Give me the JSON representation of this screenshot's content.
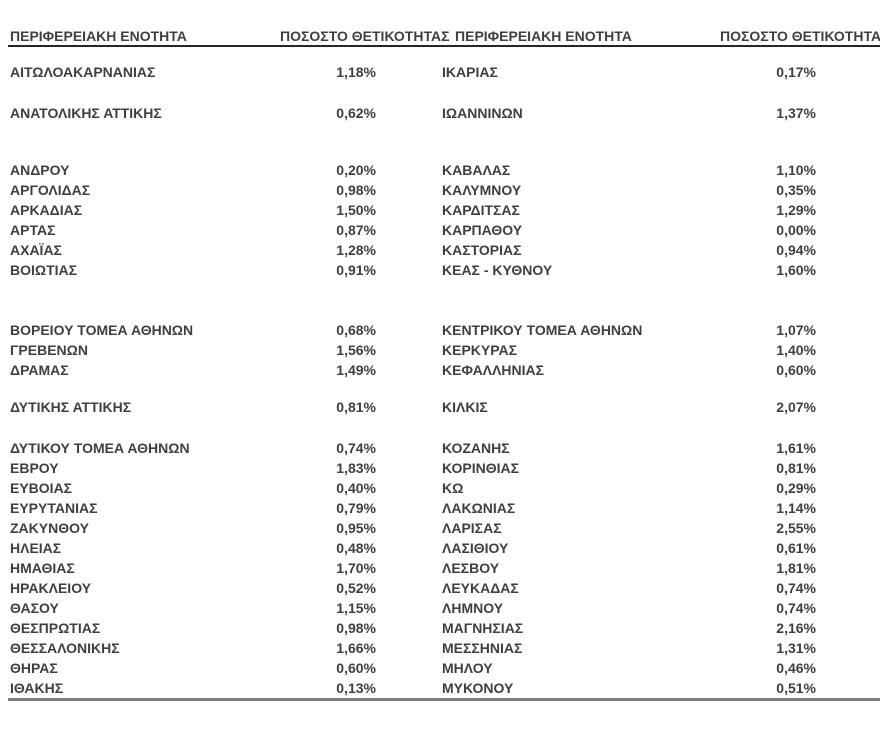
{
  "table": {
    "headers": {
      "region": "ΠΕΡΙΦΕΡΕΙΑΚΗ ΕΝΟΤΗΤΑ",
      "positivity": "ΠΟΣΟΣΤΟ ΘΕΤΙΚΟΤΗΤΑΣ"
    },
    "rows": [
      {
        "left": {
          "name": "ΑΙΤΩΛΟΑΚΑΡΝΑΝΙΑΣ",
          "positivity": "1,18%"
        },
        "right": {
          "name": "ΙΚΑΡΙΑΣ",
          "positivity": "0,17%"
        }
      },
      {
        "gap_before": "sm",
        "left": {
          "name": "ΑΝΑΤΟΛΙΚΗΣ ΑΤΤΙΚΗΣ",
          "positivity": "0,62%"
        },
        "right": {
          "name": "ΙΩΑΝΝΙΝΩΝ",
          "positivity": "1,37%"
        }
      },
      {
        "gap_before": "md",
        "left": {
          "name": "ΑΝΔΡΟΥ",
          "positivity": "0,20%"
        },
        "right": {
          "name": "ΚΑΒΑΛΑΣ",
          "positivity": "1,10%"
        }
      },
      {
        "left": {
          "name": "ΑΡΓΟΛΙΔΑΣ",
          "positivity": "0,98%"
        },
        "right": {
          "name": "ΚΑΛΥΜΝΟΥ",
          "positivity": "0,35%"
        }
      },
      {
        "left": {
          "name": "ΑΡΚΑΔΙΑΣ",
          "positivity": "1,50%"
        },
        "right": {
          "name": "ΚΑΡΔΙΤΣΑΣ",
          "positivity": "1,29%"
        }
      },
      {
        "left": {
          "name": "ΑΡΤΑΣ",
          "positivity": "0,87%"
        },
        "right": {
          "name": "ΚΑΡΠΑΘΟΥ",
          "positivity": "0,00%"
        }
      },
      {
        "left": {
          "name": "ΑΧΑΪΑΣ",
          "positivity": "1,28%"
        },
        "right": {
          "name": "ΚΑΣΤΟΡΙΑΣ",
          "positivity": "0,94%"
        }
      },
      {
        "left": {
          "name": "ΒΟΙΩΤΙΑΣ",
          "positivity": "0,91%"
        },
        "right": {
          "name": "ΚΕΑΣ - ΚΥΘΝΟΥ",
          "positivity": "1,60%"
        }
      },
      {
        "gap_before": "lg",
        "left": {
          "name": "ΒΟΡΕΙΟΥ ΤΟΜΕΑ ΑΘΗΝΩΝ",
          "positivity": "0,68%"
        },
        "right": {
          "name": "ΚΕΝΤΡΙΚΟΥ ΤΟΜΕΑ ΑΘΗΝΩΝ",
          "positivity": "1,07%"
        }
      },
      {
        "left": {
          "name": "ΓΡΕΒΕΝΩΝ",
          "positivity": "1,56%"
        },
        "right": {
          "name": "ΚΕΡΚΥΡΑΣ",
          "positivity": "1,40%"
        }
      },
      {
        "left": {
          "name": "ΔΡΑΜΑΣ",
          "positivity": "1,49%"
        },
        "right": {
          "name": "ΚΕΦΑΛΛΗΝΙΑΣ",
          "positivity": "0,60%"
        }
      },
      {
        "gap_before": "xs",
        "left": {
          "name": "ΔΥΤΙΚΗΣ ΑΤΤΙΚΗΣ",
          "positivity": "0,81%"
        },
        "right": {
          "name": "ΚΙΛΚΙΣ",
          "positivity": "2,07%"
        }
      },
      {
        "gap_before": "sm",
        "left": {
          "name": "ΔΥΤΙΚΟΥ ΤΟΜΕΑ ΑΘΗΝΩΝ",
          "positivity": "0,74%"
        },
        "right": {
          "name": "ΚΟΖΑΝΗΣ",
          "positivity": "1,61%"
        }
      },
      {
        "left": {
          "name": "ΕΒΡΟΥ",
          "positivity": "1,83%"
        },
        "right": {
          "name": "ΚΟΡΙΝΘΙΑΣ",
          "positivity": "0,81%"
        }
      },
      {
        "left": {
          "name": "ΕΥΒΟΙΑΣ",
          "positivity": "0,40%"
        },
        "right": {
          "name": "ΚΩ",
          "positivity": "0,29%"
        }
      },
      {
        "left": {
          "name": "ΕΥΡΥΤΑΝΙΑΣ",
          "positivity": "0,79%"
        },
        "right": {
          "name": "ΛΑΚΩΝΙΑΣ",
          "positivity": "1,14%"
        }
      },
      {
        "left": {
          "name": "ΖΑΚΥΝΘΟΥ",
          "positivity": "0,95%"
        },
        "right": {
          "name": "ΛΑΡΙΣΑΣ",
          "positivity": "2,55%"
        }
      },
      {
        "left": {
          "name": "ΗΛΕΙΑΣ",
          "positivity": "0,48%"
        },
        "right": {
          "name": "ΛΑΣΙΘΙΟΥ",
          "positivity": "0,61%"
        }
      },
      {
        "left": {
          "name": "ΗΜΑΘΙΑΣ",
          "positivity": "1,70%"
        },
        "right": {
          "name": "ΛΕΣΒΟΥ",
          "positivity": "1,81%"
        }
      },
      {
        "left": {
          "name": "ΗΡΑΚΛΕΙΟΥ",
          "positivity": "0,52%"
        },
        "right": {
          "name": "ΛΕΥΚΑΔΑΣ",
          "positivity": "0,74%"
        }
      },
      {
        "left": {
          "name": "ΘΑΣΟΥ",
          "positivity": "1,15%"
        },
        "right": {
          "name": "ΛΗΜΝΟΥ",
          "positivity": "0,74%"
        }
      },
      {
        "left": {
          "name": "ΘΕΣΠΡΩΤΙΑΣ",
          "positivity": "0,98%"
        },
        "right": {
          "name": "ΜΑΓΝΗΣΙΑΣ",
          "positivity": "2,16%"
        }
      },
      {
        "left": {
          "name": "ΘΕΣΣΑΛΟΝΙΚΗΣ",
          "positivity": "1,66%"
        },
        "right": {
          "name": "ΜΕΣΣΗΝΙΑΣ",
          "positivity": "1,31%"
        }
      },
      {
        "left": {
          "name": "ΘΗΡΑΣ",
          "positivity": "0,60%"
        },
        "right": {
          "name": "ΜΗΛΟΥ",
          "positivity": "0,46%"
        }
      },
      {
        "left": {
          "name": "ΙΘΑΚΗΣ",
          "positivity": "0,13%"
        },
        "right": {
          "name": "ΜΥΚΟΝΟΥ",
          "positivity": "0,51%"
        }
      }
    ]
  },
  "colors": {
    "text": "#3f3f3f",
    "header_rule": "#262626",
    "bottom_rule": "#7f7f7f",
    "background": "#ffffff"
  }
}
